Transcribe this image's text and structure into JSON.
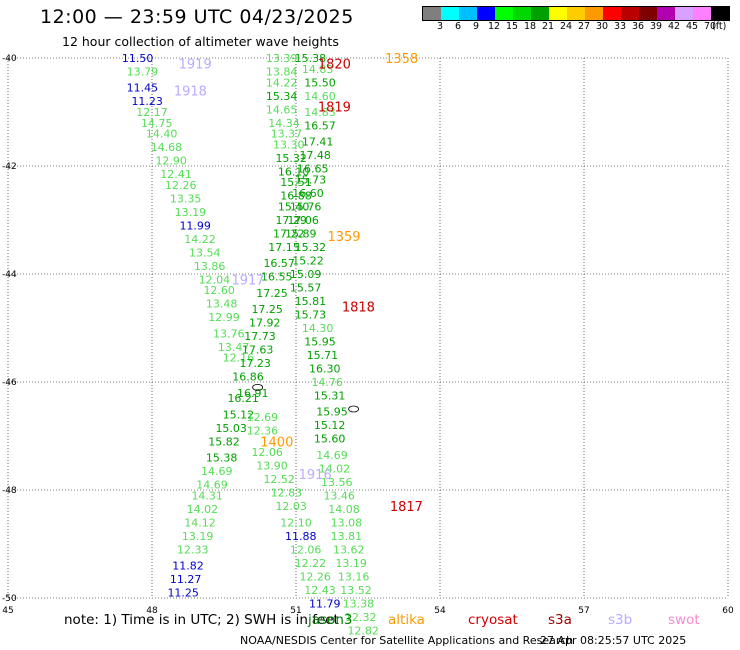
{
  "title": "12:00 — 23:59 UTC 04/23/2025",
  "subtitle": "12 hour collection of altimeter wave heights",
  "colorbar": {
    "colors": [
      "#7f7f7f",
      "#00ffff",
      "#00bfff",
      "#0000ff",
      "#00ff00",
      "#00d800",
      "#00a000",
      "#ffff00",
      "#ffcc00",
      "#ff9900",
      "#ff0000",
      "#bb0000",
      "#7f0000",
      "#b000b0",
      "#d8a0ff",
      "#ff80ff",
      "#000000"
    ],
    "labels": [
      "3",
      "6",
      "9",
      "12",
      "15",
      "18",
      "21",
      "24",
      "27",
      "30",
      "33",
      "36",
      "39",
      "42",
      "45",
      "70"
    ],
    "unit": "(ft)"
  },
  "note": "note:  1) Time is in UTC;  2) SWH is in feet",
  "legend": [
    {
      "label": "jason3",
      "color": "#008000"
    },
    {
      "label": "altika",
      "color": "#ff9900"
    },
    {
      "label": "cryosat",
      "color": "#cc0000"
    },
    {
      "label": "s3a",
      "color": "#990000"
    },
    {
      "label": "s3b",
      "color": "#bbaaff"
    },
    {
      "label": "swot",
      "color": "#ff88cc"
    }
  ],
  "credit": "NOAA/NESDIS Center for Satellite Applications and Research",
  "stamp": "27 Apr 08:25:57 UTC 2025",
  "chart_data": {
    "type": "scatter",
    "xlim": [
      45,
      60
    ],
    "ylim": [
      -50,
      -40
    ],
    "xticks": [
      45,
      48,
      51,
      54,
      57,
      60
    ],
    "yticks": [
      -40,
      -42,
      -44,
      -46,
      -48,
      -50
    ],
    "xtick_labels": [
      "45",
      "48",
      "51",
      "54",
      "57",
      "60"
    ],
    "ytick_labels": [
      "-40",
      "-42",
      "-44",
      "-46",
      "-48",
      "-50"
    ],
    "grid": "dotted",
    "time_labels": [
      {
        "text": "1919",
        "x": 48.9,
        "y": -40.1,
        "color": "#bbaaff"
      },
      {
        "text": "1918",
        "x": 48.8,
        "y": -40.6,
        "color": "#bbaaff"
      },
      {
        "text": "1820",
        "x": 51.8,
        "y": -40.1,
        "color": "#cc0000"
      },
      {
        "text": "1358",
        "x": 53.2,
        "y": -40.0,
        "color": "#ff9900"
      },
      {
        "text": "1819",
        "x": 51.8,
        "y": -40.9,
        "color": "#cc0000"
      },
      {
        "text": "1359",
        "x": 52.0,
        "y": -43.3,
        "color": "#ff9900"
      },
      {
        "text": "1917",
        "x": 50.0,
        "y": -44.1,
        "color": "#bbaaff"
      },
      {
        "text": "1818",
        "x": 52.3,
        "y": -44.6,
        "color": "#cc0000"
      },
      {
        "text": "1400",
        "x": 50.6,
        "y": -47.1,
        "color": "#ff9900"
      },
      {
        "text": "1916",
        "x": 51.4,
        "y": -47.7,
        "color": "#bbaaff"
      },
      {
        "text": "1817",
        "x": 53.3,
        "y": -48.3,
        "color": "#cc0000"
      }
    ],
    "series": [
      {
        "name": "jason3",
        "points": [
          [
            47.7,
            -40.0,
            11.5
          ],
          [
            47.8,
            -40.25,
            13.79
          ],
          [
            47.8,
            -40.55,
            11.45
          ],
          [
            47.9,
            -40.8,
            11.23
          ],
          [
            48.0,
            -41.0,
            12.17
          ],
          [
            48.1,
            -41.2,
            14.75
          ],
          [
            48.2,
            -41.4,
            14.4
          ],
          [
            48.3,
            -41.65,
            14.68
          ],
          [
            48.4,
            -41.9,
            12.9
          ],
          [
            48.5,
            -42.15,
            12.41
          ],
          [
            48.6,
            -42.35,
            12.26
          ],
          [
            48.7,
            -42.6,
            13.35
          ],
          [
            48.8,
            -42.85,
            13.19
          ],
          [
            48.9,
            -43.1,
            11.99
          ],
          [
            49.0,
            -43.35,
            14.22
          ],
          [
            49.1,
            -43.6,
            13.54
          ],
          [
            49.2,
            -43.85,
            13.86
          ],
          [
            49.3,
            -44.1,
            12.04
          ],
          [
            49.4,
            -44.3,
            12.6
          ],
          [
            49.45,
            -44.55,
            13.48
          ],
          [
            49.5,
            -44.8,
            12.99
          ],
          [
            49.6,
            -45.1,
            13.76
          ],
          [
            49.7,
            -45.35,
            13.47
          ],
          [
            49.8,
            -45.55,
            12.16
          ],
          [
            50.0,
            -45.9,
            16.86
          ],
          [
            49.9,
            -46.3,
            16.21
          ],
          [
            49.8,
            -46.6,
            15.12
          ],
          [
            49.65,
            -46.85,
            15.03
          ],
          [
            49.5,
            -47.1,
            15.82
          ],
          [
            49.45,
            -47.4,
            15.38
          ],
          [
            49.35,
            -47.65,
            14.69
          ],
          [
            49.25,
            -47.9,
            14.69
          ],
          [
            49.15,
            -48.1,
            14.31
          ],
          [
            49.05,
            -48.35,
            14.02
          ],
          [
            49.0,
            -48.6,
            14.12
          ],
          [
            48.95,
            -48.85,
            13.19
          ],
          [
            48.85,
            -49.1,
            12.33
          ],
          [
            48.75,
            -49.4,
            11.82
          ],
          [
            48.7,
            -49.65,
            11.27
          ],
          [
            48.65,
            -49.9,
            11.25
          ],
          [
            50.7,
            -40.0,
            13.39
          ],
          [
            50.7,
            -40.25,
            13.84
          ],
          [
            50.7,
            -40.45,
            14.22
          ],
          [
            50.7,
            -40.7,
            15.34
          ],
          [
            50.7,
            -40.95,
            14.65
          ],
          [
            50.75,
            -41.2,
            14.34
          ],
          [
            50.8,
            -41.4,
            13.37
          ],
          [
            50.85,
            -41.6,
            13.3
          ],
          [
            50.9,
            -41.85,
            15.32
          ],
          [
            50.95,
            -42.1,
            16.1
          ],
          [
            51.0,
            -42.3,
            15.51
          ],
          [
            51.0,
            -42.55,
            16.88
          ],
          [
            50.95,
            -42.75,
            15.4
          ],
          [
            50.9,
            -43.0,
            17.29
          ],
          [
            50.85,
            -43.25,
            17.22
          ],
          [
            50.75,
            -43.5,
            17.15
          ],
          [
            50.65,
            -43.8,
            16.57
          ],
          [
            50.6,
            -44.05,
            16.55
          ],
          [
            50.5,
            -44.35,
            17.25
          ],
          [
            50.4,
            -44.65,
            17.25
          ],
          [
            50.35,
            -44.9,
            17.92
          ],
          [
            50.25,
            -45.15,
            17.73
          ],
          [
            50.2,
            -45.4,
            17.63
          ],
          [
            50.15,
            -45.65,
            17.23
          ],
          [
            50.1,
            -46.2,
            16.91
          ],
          [
            50.3,
            -46.65,
            12.69
          ],
          [
            50.3,
            -46.9,
            12.36
          ],
          [
            50.4,
            -47.3,
            12.06
          ],
          [
            50.5,
            -47.55,
            13.9
          ],
          [
            50.65,
            -47.8,
            12.52
          ],
          [
            50.8,
            -48.05,
            12.83
          ],
          [
            50.9,
            -48.3,
            12.03
          ],
          [
            51.0,
            -48.6,
            12.1
          ],
          [
            51.1,
            -48.85,
            11.88
          ],
          [
            51.2,
            -49.1,
            12.06
          ],
          [
            51.3,
            -49.35,
            12.22
          ],
          [
            51.4,
            -49.6,
            12.26
          ],
          [
            51.5,
            -49.85,
            12.43
          ],
          [
            51.6,
            -50.1,
            11.79
          ],
          [
            51.3,
            -40.0,
            15.38
          ],
          [
            51.45,
            -40.2,
            14.83
          ],
          [
            51.5,
            -40.45,
            15.5
          ],
          [
            51.5,
            -40.7,
            14.6
          ],
          [
            51.5,
            -41.0,
            14.83
          ],
          [
            51.5,
            -41.25,
            16.57
          ],
          [
            51.45,
            -41.55,
            17.41
          ],
          [
            51.4,
            -41.8,
            17.48
          ],
          [
            51.35,
            -42.05,
            16.65
          ],
          [
            51.3,
            -42.25,
            15.73
          ],
          [
            51.25,
            -42.5,
            16.6
          ],
          [
            51.2,
            -42.75,
            15.76
          ],
          [
            51.15,
            -43.0,
            17.06
          ],
          [
            51.1,
            -43.25,
            15.89
          ],
          [
            51.3,
            -43.5,
            15.32
          ],
          [
            51.25,
            -43.75,
            15.22
          ],
          [
            51.2,
            -44.0,
            15.09
          ],
          [
            51.2,
            -44.25,
            15.57
          ],
          [
            51.3,
            -44.5,
            15.81
          ],
          [
            51.3,
            -44.75,
            15.73
          ],
          [
            51.45,
            -45.0,
            14.3
          ],
          [
            51.5,
            -45.25,
            15.95
          ],
          [
            51.55,
            -45.5,
            15.71
          ],
          [
            51.6,
            -45.75,
            16.3
          ],
          [
            51.65,
            -46.0,
            14.76
          ],
          [
            51.7,
            -46.25,
            15.31
          ],
          [
            51.75,
            -46.55,
            15.95
          ],
          [
            51.7,
            -46.8,
            15.12
          ],
          [
            51.7,
            -47.05,
            15.6
          ],
          [
            51.75,
            -47.35,
            14.69
          ],
          [
            51.8,
            -47.6,
            14.02
          ],
          [
            51.85,
            -47.85,
            13.56
          ],
          [
            51.9,
            -48.1,
            13.46
          ],
          [
            52.0,
            -48.35,
            14.08
          ],
          [
            52.05,
            -48.6,
            13.08
          ],
          [
            52.05,
            -48.85,
            13.81
          ],
          [
            52.1,
            -49.1,
            13.62
          ],
          [
            52.15,
            -49.35,
            13.19
          ],
          [
            52.2,
            -49.6,
            13.16
          ],
          [
            52.25,
            -49.85,
            13.52
          ],
          [
            52.3,
            -50.1,
            13.38
          ]
        ]
      }
    ],
    "extra_points": [
      [
        52.35,
        -50.35,
        12.32
      ],
      [
        52.4,
        -50.6,
        12.82
      ]
    ]
  }
}
